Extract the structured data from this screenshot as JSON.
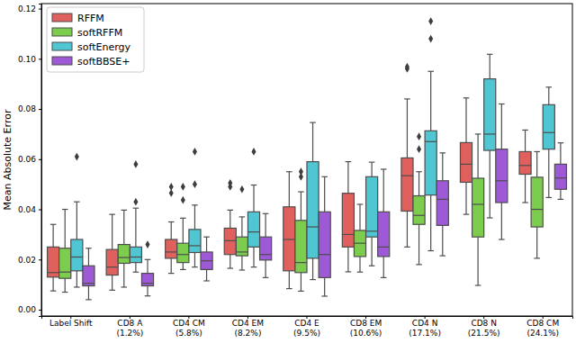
{
  "chart_data": {
    "type": "box",
    "y_label": "Mean Absolute Error",
    "categories": [
      "Label Shift",
      "CD8 A\n(1.2%)",
      "CD4 CM\n(5.8%)",
      "CD4 EM\n(8.2%)",
      "CD4 E\n(9.5%)",
      "CD8 EM\n(10.6%)",
      "CD4 N\n(17.1%)",
      "CD8 N\n(21.5%)",
      "CD8 CM\n(24.1%)"
    ],
    "ylim": [
      -0.0025,
      0.122
    ],
    "yticks": [
      {
        "value": 0,
        "label": "0.00"
      },
      {
        "value": 0.02,
        "label": "0.02"
      },
      {
        "value": 0.04,
        "label": "0.04"
      },
      {
        "value": 0.06,
        "label": "0.06"
      },
      {
        "value": 0.08,
        "label": "0.08"
      },
      {
        "value": 0.1,
        "label": "0.10"
      },
      {
        "value": 0.12,
        "label": "0.12"
      }
    ],
    "legend": "upper left",
    "series": [
      {
        "name": "RFFM",
        "color": "#e0605e",
        "min": [
          0.0075,
          0.0078,
          0.0145,
          0.0165,
          0.0084,
          0.0151,
          0.025,
          0.038,
          0.0427
        ],
        "q1": [
          0.013,
          0.0138,
          0.0205,
          0.022,
          0.0155,
          0.025,
          0.0393,
          0.0508,
          0.054
        ],
        "median": [
          0.0148,
          0.017,
          0.023,
          0.0275,
          0.028,
          0.03,
          0.0534,
          0.058,
          0.0575
        ],
        "q3": [
          0.025,
          0.024,
          0.028,
          0.0325,
          0.041,
          0.0464,
          0.0605,
          0.0666,
          0.063
        ],
        "max": [
          0.034,
          0.038,
          0.035,
          0.0397,
          0.055,
          0.059,
          0.084,
          0.0844,
          0.0716
        ],
        "outliers": [
          [],
          [],
          [
            0.049,
            0.0465
          ],
          [
            0.0505,
            0.049
          ],
          [],
          [],
          [
            0.096,
            0.0968
          ],
          [],
          []
        ]
      },
      {
        "name": "softRFFM",
        "color": "#7ccc4e",
        "min": [
          0.007,
          0.009,
          0.016,
          0.0158,
          0.0074,
          0.015,
          0.018,
          0.0097,
          0.0205
        ],
        "q1": [
          0.0125,
          0.0185,
          0.0188,
          0.0215,
          0.0148,
          0.0212,
          0.034,
          0.029,
          0.033
        ],
        "median": [
          0.015,
          0.0208,
          0.022,
          0.023,
          0.0188,
          0.0265,
          0.0376,
          0.042,
          0.04
        ],
        "q3": [
          0.0245,
          0.026,
          0.0265,
          0.029,
          0.0356,
          0.0316,
          0.0454,
          0.0524,
          0.0528
        ],
        "max": [
          0.04,
          0.0397,
          0.0365,
          0.037,
          0.047,
          0.042,
          0.055,
          0.07,
          0.063
        ],
        "outliers": [
          [],
          [],
          [
            0.049,
            0.0437
          ],
          [
            0.048
          ],
          [
            0.055,
            0.053
          ],
          [],
          [
            0.069,
            0.064
          ],
          [],
          []
        ]
      },
      {
        "name": "softEnergy",
        "color": "#4fc6d1",
        "min": [
          0.009,
          0.015,
          0.017,
          0.017,
          0.012,
          0.0175,
          0.0235,
          0.0366,
          0.0447
        ],
        "q1": [
          0.0155,
          0.0188,
          0.0228,
          0.025,
          0.0205,
          0.029,
          0.0457,
          0.0635,
          0.064
        ],
        "median": [
          0.021,
          0.021,
          0.0255,
          0.031,
          0.033,
          0.0313,
          0.067,
          0.07,
          0.0706
        ],
        "q3": [
          0.028,
          0.025,
          0.032,
          0.039,
          0.059,
          0.053,
          0.0713,
          0.092,
          0.0817
        ],
        "max": [
          0.043,
          0.0405,
          0.0417,
          0.0497,
          0.0746,
          0.0588,
          0.095,
          0.1018,
          0.0887
        ],
        "outliers": [
          [
            0.061
          ],
          [
            0.058,
            0.043
          ],
          [
            0.063,
            0.05
          ],
          [
            0.063
          ],
          [],
          [],
          [
            0.115,
            0.108
          ],
          [],
          []
        ]
      },
      {
        "name": "softBBSE+",
        "color": "#9e5ad6",
        "min": [
          0.004,
          0.0055,
          0.0115,
          0.0128,
          0.0054,
          0.0128,
          0.0215,
          0.028,
          0.044
        ],
        "q1": [
          0.0095,
          0.0095,
          0.016,
          0.0198,
          0.0128,
          0.0212,
          0.0336,
          0.0427,
          0.048
        ],
        "median": [
          0.0105,
          0.0105,
          0.0195,
          0.022,
          0.022,
          0.025,
          0.044,
          0.0514,
          0.0525
        ],
        "q3": [
          0.0175,
          0.0145,
          0.023,
          0.029,
          0.039,
          0.039,
          0.0514,
          0.064,
          0.058
        ],
        "max": [
          0.0245,
          0.02,
          0.029,
          0.0383,
          0.053,
          0.056,
          0.0625,
          0.082,
          0.0665
        ],
        "outliers": [
          [],
          [
            0.026
          ],
          [],
          [],
          [],
          [],
          [],
          [],
          []
        ]
      }
    ]
  }
}
